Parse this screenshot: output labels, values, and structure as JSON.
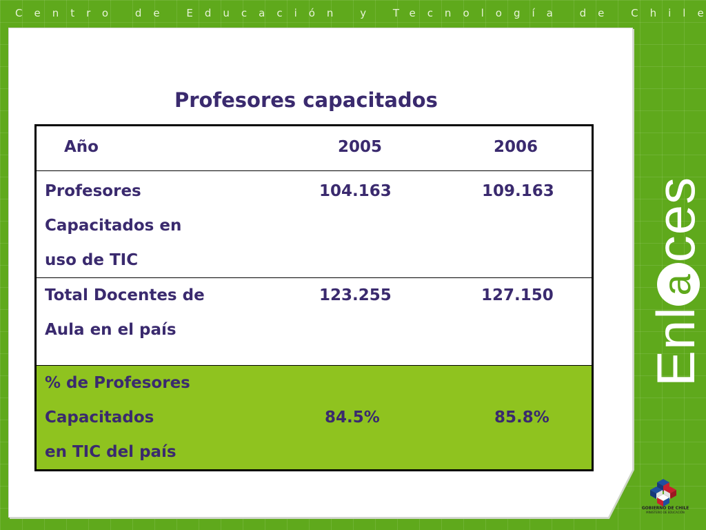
{
  "header": {
    "tagline": "Centro de Educación y Tecnología de Chile"
  },
  "slide": {
    "title": "Profesores capacitados"
  },
  "table": {
    "header": {
      "label": "Año",
      "col1": "2005",
      "col2": "2006"
    },
    "rows": [
      {
        "label_lines": [
          "Profesores",
          "Capacitados en",
          "uso de TIC"
        ],
        "v2005": "104.163",
        "v2006": "109.163"
      },
      {
        "label_lines": [
          "Total Docentes de",
          "Aula en el país"
        ],
        "v2005": "123.255",
        "v2006": "127.150"
      },
      {
        "label_lines": [
          "% de Profesores",
          "Capacitados",
          "en TIC del país"
        ],
        "v2005": "84.5%",
        "v2006": "85.8%"
      }
    ]
  },
  "branding": {
    "logo_text_pre": "Enl",
    "logo_text_a": "a",
    "logo_text_post": "ces"
  },
  "footer_logo": {
    "line1": "GOBIERNO DE CHILE",
    "line2": "MINISTERIO DE EDUCACIÓN"
  },
  "colors": {
    "background_green": "#5fa91c",
    "highlight_row": "#8fc31f",
    "text_purple": "#3a2a6e"
  }
}
